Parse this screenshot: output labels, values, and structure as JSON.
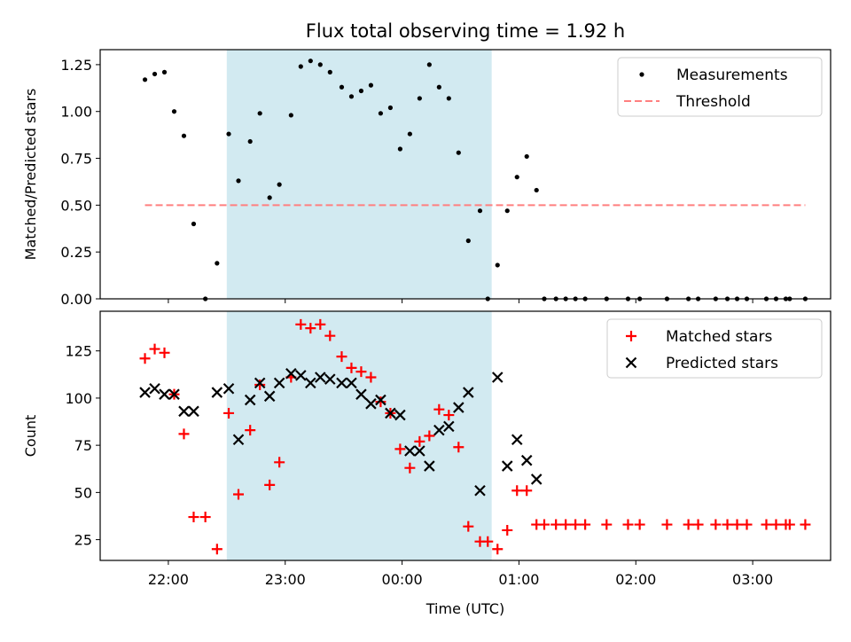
{
  "figure": {
    "title": "Flux total observing time = 1.92 h",
    "xlabel": "Time (UTC)"
  },
  "x_ticks": [
    "22:00",
    "23:00",
    "00:00",
    "01:00",
    "02:00",
    "03:00"
  ],
  "highlight_span": {
    "start": "22:30",
    "end": "00:46",
    "color": "#add8e6"
  },
  "colors": {
    "measurements": "#000000",
    "threshold": "#ff7f7f",
    "matched": "#ff0000",
    "predicted": "#000000"
  },
  "chart_data": [
    {
      "type": "scatter",
      "ylabel": "Matched/Predicted stars",
      "ylim": [
        0,
        1.33
      ],
      "yticks": [
        "0.00",
        "0.25",
        "0.50",
        "0.75",
        "1.00",
        "1.25"
      ],
      "x_range": [
        "21:25",
        "03:40"
      ],
      "legend": "top-right",
      "series": [
        {
          "name": "Measurements",
          "marker": "dot",
          "points": [
            [
              "21:48",
              1.17
            ],
            [
              "21:53",
              1.2
            ],
            [
              "21:58",
              1.21
            ],
            [
              "22:03",
              1.0
            ],
            [
              "22:08",
              0.87
            ],
            [
              "22:13",
              0.4
            ],
            [
              "22:19",
              0.0
            ],
            [
              "22:25",
              0.19
            ],
            [
              "22:31",
              0.88
            ],
            [
              "22:36",
              0.63
            ],
            [
              "22:42",
              0.84
            ],
            [
              "22:47",
              0.99
            ],
            [
              "22:52",
              0.54
            ],
            [
              "22:57",
              0.61
            ],
            [
              "23:03",
              0.98
            ],
            [
              "23:08",
              1.24
            ],
            [
              "23:13",
              1.27
            ],
            [
              "23:18",
              1.25
            ],
            [
              "23:23",
              1.21
            ],
            [
              "23:29",
              1.13
            ],
            [
              "23:34",
              1.08
            ],
            [
              "23:39",
              1.11
            ],
            [
              "23:44",
              1.14
            ],
            [
              "23:49",
              0.99
            ],
            [
              "23:54",
              1.02
            ],
            [
              "23:59",
              0.8
            ],
            [
              "00:04",
              0.88
            ],
            [
              "00:09",
              1.07
            ],
            [
              "00:14",
              1.25
            ],
            [
              "00:19",
              1.13
            ],
            [
              "00:24",
              1.07
            ],
            [
              "00:29",
              0.78
            ],
            [
              "00:34",
              0.31
            ],
            [
              "00:40",
              0.47
            ],
            [
              "00:44",
              0.0
            ],
            [
              "00:49",
              0.18
            ],
            [
              "00:54",
              0.47
            ],
            [
              "00:59",
              0.65
            ],
            [
              "01:04",
              0.76
            ],
            [
              "01:09",
              0.58
            ],
            [
              "01:13",
              0.0
            ],
            [
              "01:19",
              0.0
            ],
            [
              "01:24",
              0.0
            ],
            [
              "01:29",
              0.0
            ],
            [
              "01:34",
              0.0
            ],
            [
              "01:45",
              0.0
            ],
            [
              "01:56",
              0.0
            ],
            [
              "02:02",
              0.0
            ],
            [
              "02:16",
              0.0
            ],
            [
              "02:27",
              0.0
            ],
            [
              "02:32",
              0.0
            ],
            [
              "02:41",
              0.0
            ],
            [
              "02:47",
              0.0
            ],
            [
              "02:52",
              0.0
            ],
            [
              "02:57",
              0.0
            ],
            [
              "03:07",
              0.0
            ],
            [
              "03:12",
              0.0
            ],
            [
              "03:17",
              0.0
            ],
            [
              "03:19",
              0.0
            ],
            [
              "03:27",
              0.0
            ]
          ]
        },
        {
          "name": "Threshold",
          "marker": "dashed-line",
          "points": [
            [
              "21:48",
              0.5
            ],
            [
              "03:27",
              0.5
            ]
          ]
        }
      ]
    },
    {
      "type": "scatter",
      "ylabel": "Count",
      "ylim": [
        14,
        146
      ],
      "yticks": [
        "25",
        "50",
        "75",
        "100",
        "125"
      ],
      "x_range": [
        "21:25",
        "03:40"
      ],
      "legend": "top-right",
      "series": [
        {
          "name": "Matched stars",
          "marker": "plus",
          "points": [
            [
              "21:48",
              121
            ],
            [
              "21:53",
              126
            ],
            [
              "21:58",
              124
            ],
            [
              "22:03",
              102
            ],
            [
              "22:08",
              81
            ],
            [
              "22:13",
              37
            ],
            [
              "22:19",
              37
            ],
            [
              "22:25",
              20
            ],
            [
              "22:31",
              92
            ],
            [
              "22:36",
              49
            ],
            [
              "22:42",
              83
            ],
            [
              "22:47",
              107
            ],
            [
              "22:52",
              54
            ],
            [
              "22:57",
              66
            ],
            [
              "23:03",
              111
            ],
            [
              "23:08",
              139
            ],
            [
              "23:13",
              137
            ],
            [
              "23:18",
              139
            ],
            [
              "23:23",
              133
            ],
            [
              "23:29",
              122
            ],
            [
              "23:34",
              116
            ],
            [
              "23:39",
              114
            ],
            [
              "23:44",
              111
            ],
            [
              "23:49",
              98
            ],
            [
              "23:54",
              92
            ],
            [
              "23:59",
              73
            ],
            [
              "00:04",
              63
            ],
            [
              "00:09",
              77
            ],
            [
              "00:14",
              80
            ],
            [
              "00:19",
              94
            ],
            [
              "00:24",
              91
            ],
            [
              "00:29",
              74
            ],
            [
              "00:34",
              32
            ],
            [
              "00:40",
              24
            ],
            [
              "00:44",
              24
            ],
            [
              "00:49",
              20
            ],
            [
              "00:54",
              30
            ],
            [
              "00:59",
              51
            ],
            [
              "01:04",
              51
            ],
            [
              "01:09",
              33
            ],
            [
              "01:13",
              33
            ],
            [
              "01:19",
              33
            ],
            [
              "01:24",
              33
            ],
            [
              "01:29",
              33
            ],
            [
              "01:34",
              33
            ],
            [
              "01:45",
              33
            ],
            [
              "01:56",
              33
            ],
            [
              "02:02",
              33
            ],
            [
              "02:16",
              33
            ],
            [
              "02:27",
              33
            ],
            [
              "02:32",
              33
            ],
            [
              "02:41",
              33
            ],
            [
              "02:47",
              33
            ],
            [
              "02:52",
              33
            ],
            [
              "02:57",
              33
            ],
            [
              "03:07",
              33
            ],
            [
              "03:12",
              33
            ],
            [
              "03:17",
              33
            ],
            [
              "03:19",
              33
            ],
            [
              "03:27",
              33
            ]
          ]
        },
        {
          "name": "Predicted stars",
          "marker": "x",
          "points": [
            [
              "21:48",
              103
            ],
            [
              "21:53",
              105
            ],
            [
              "21:58",
              102
            ],
            [
              "22:03",
              102
            ],
            [
              "22:08",
              93
            ],
            [
              "22:13",
              93
            ],
            [
              "22:25",
              103
            ],
            [
              "22:31",
              105
            ],
            [
              "22:36",
              78
            ],
            [
              "22:42",
              99
            ],
            [
              "22:47",
              108
            ],
            [
              "22:52",
              101
            ],
            [
              "22:57",
              108
            ],
            [
              "23:03",
              113
            ],
            [
              "23:08",
              112
            ],
            [
              "23:13",
              108
            ],
            [
              "23:18",
              111
            ],
            [
              "23:23",
              110
            ],
            [
              "23:29",
              108
            ],
            [
              "23:34",
              108
            ],
            [
              "23:39",
              102
            ],
            [
              "23:44",
              97
            ],
            [
              "23:49",
              99
            ],
            [
              "23:54",
              92
            ],
            [
              "23:59",
              91
            ],
            [
              "00:04",
              72
            ],
            [
              "00:09",
              72
            ],
            [
              "00:14",
              64
            ],
            [
              "00:19",
              83
            ],
            [
              "00:24",
              85
            ],
            [
              "00:29",
              95
            ],
            [
              "00:34",
              103
            ],
            [
              "00:40",
              51
            ],
            [
              "00:49",
              111
            ],
            [
              "00:54",
              64
            ],
            [
              "00:59",
              78
            ],
            [
              "01:04",
              67
            ],
            [
              "01:09",
              57
            ]
          ]
        }
      ]
    }
  ]
}
